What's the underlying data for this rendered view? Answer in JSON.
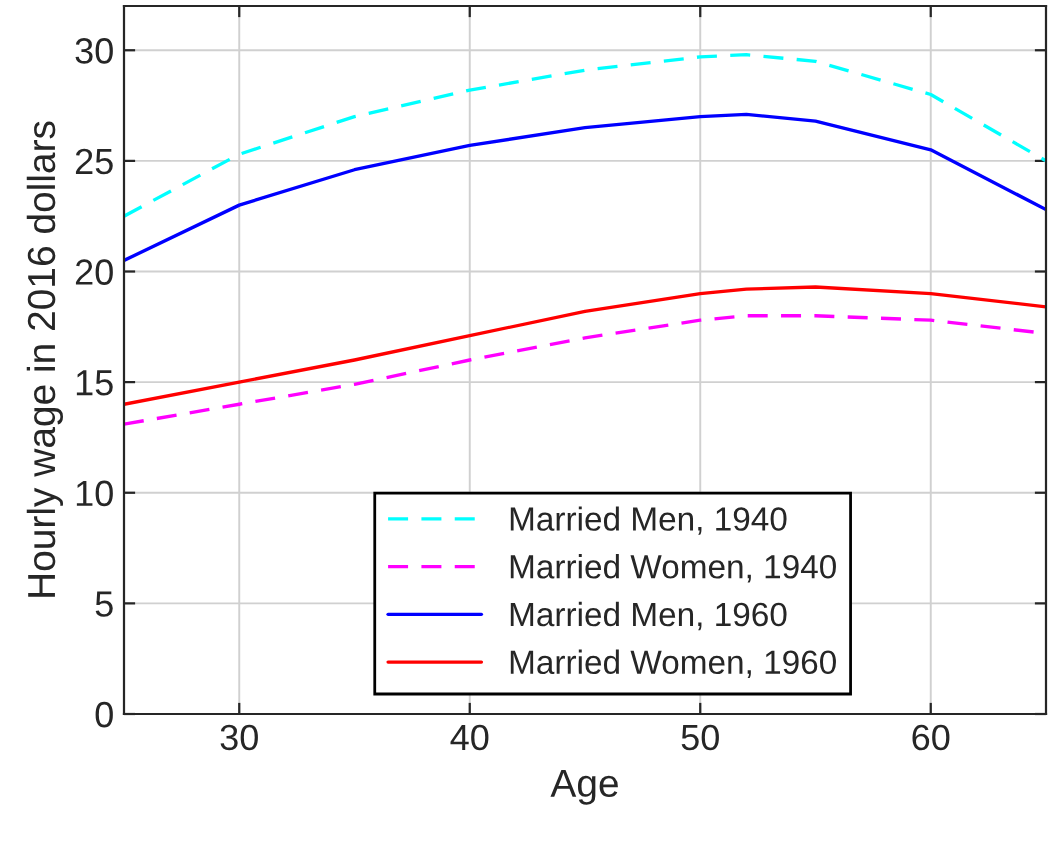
{
  "chart_data": {
    "type": "line",
    "xlabel": "Age",
    "ylabel": "Hourly wage in 2016 dollars",
    "x": [
      25,
      30,
      35,
      40,
      45,
      50,
      52,
      55,
      60,
      65
    ],
    "xlim": [
      25,
      65
    ],
    "xticks": [
      30,
      40,
      50,
      60
    ],
    "ylim": [
      0,
      32
    ],
    "yticks": [
      0,
      5,
      10,
      15,
      20,
      25,
      30
    ],
    "grid": true,
    "legend": "bottom",
    "marker": "none",
    "series": [
      {
        "name": "Married Men, 1940",
        "color": "#00ffff",
        "line_style": "dashed",
        "values": [
          22.5,
          25.3,
          27.0,
          28.2,
          29.1,
          29.7,
          29.8,
          29.5,
          28.0,
          25.0
        ]
      },
      {
        "name": "Married Women, 1940",
        "color": "#ff00ff",
        "line_style": "dashed",
        "values": [
          13.1,
          14.0,
          14.9,
          16.0,
          17.0,
          17.8,
          18.0,
          18.0,
          17.8,
          17.2
        ]
      },
      {
        "name": "Married Men, 1960",
        "color": "#0000ff",
        "line_style": "solid",
        "values": [
          20.5,
          23.0,
          24.6,
          25.7,
          26.5,
          27.0,
          27.1,
          26.8,
          25.5,
          22.8
        ]
      },
      {
        "name": "Married Women, 1960",
        "color": "#ff0000",
        "line_style": "solid",
        "values": [
          14.0,
          15.0,
          16.0,
          17.1,
          18.2,
          19.0,
          19.2,
          19.3,
          19.0,
          18.4
        ]
      }
    ]
  }
}
